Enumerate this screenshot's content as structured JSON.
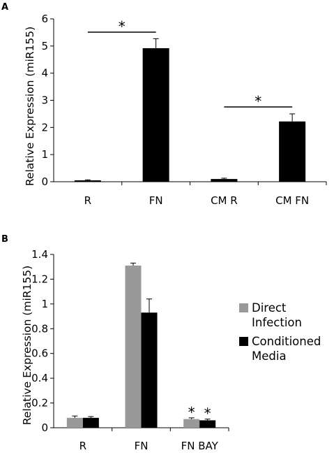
{
  "chart_data": [
    {
      "type": "bar",
      "panel_label": "A",
      "ylabel": "Relative Expression (miR155)",
      "ylim": [
        0,
        6
      ],
      "yticks": [
        "0",
        "1",
        "2",
        "3",
        "4",
        "5",
        "6"
      ],
      "categories": [
        "R",
        "FN",
        "CM R",
        "CM FN"
      ],
      "series": [
        {
          "values": [
            0.05,
            4.92,
            0.1,
            2.22
          ],
          "errors": [
            0.02,
            0.35,
            0.03,
            0.28
          ],
          "color": "#000000"
        }
      ],
      "significance": [
        {
          "from": "R",
          "to": "FN",
          "label": "*"
        },
        {
          "from": "CM R",
          "to": "CM FN",
          "label": "*"
        }
      ]
    },
    {
      "type": "bar",
      "panel_label": "B",
      "ylabel": "Relative Expression (miR155)",
      "ylim": [
        0,
        1.4
      ],
      "yticks": [
        "0",
        "0.2",
        "0.4",
        "0.6",
        "0.8",
        "1",
        "1.2",
        "1.4"
      ],
      "categories": [
        "R",
        "FN",
        "FN BAY"
      ],
      "series": [
        {
          "name": "Direct Infection",
          "values": [
            0.08,
            1.31,
            0.07
          ],
          "errors": [
            0.015,
            0.02,
            0.01
          ],
          "color": "#999999"
        },
        {
          "name": "Conditioned Media",
          "values": [
            0.08,
            0.93,
            0.06
          ],
          "errors": [
            0.01,
            0.11,
            0.01
          ],
          "color": "#000000"
        }
      ],
      "legend": "right",
      "legend_entries": [
        "Direct\nInfection",
        "Conditioned\nMedia"
      ],
      "annotations": [
        {
          "category": "FN BAY",
          "series": "Direct Infection",
          "label": "*"
        },
        {
          "category": "FN BAY",
          "series": "Conditioned Media",
          "label": "*"
        }
      ]
    }
  ]
}
